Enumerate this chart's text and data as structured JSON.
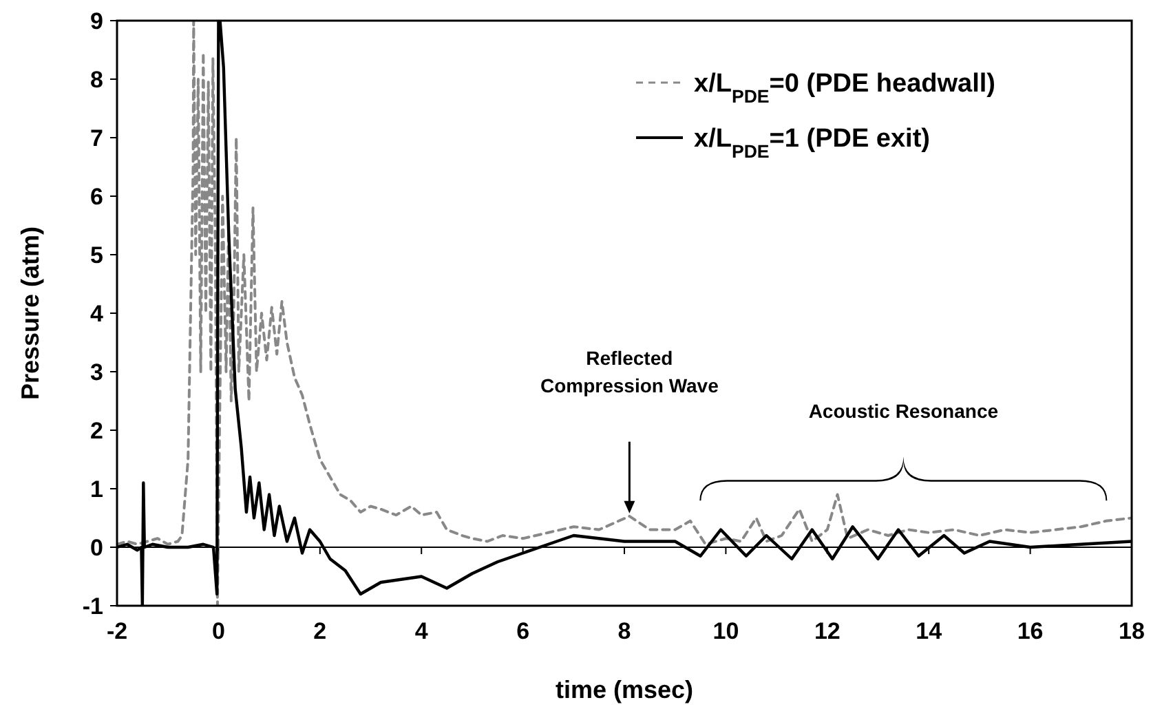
{
  "chart_data": {
    "type": "line",
    "xlabel": "time (msec)",
    "ylabel": "Pressure (atm)",
    "xlim": [
      -2,
      18
    ],
    "ylim": [
      -1,
      9
    ],
    "xticks": [
      -2,
      0,
      2,
      4,
      6,
      8,
      10,
      12,
      14,
      16,
      18
    ],
    "yticks": [
      -1,
      0,
      1,
      2,
      3,
      4,
      5,
      6,
      7,
      8,
      9
    ],
    "grid": false,
    "legend": "top right",
    "marker": "none",
    "ref_lines": [
      {
        "axis": "y",
        "value": 0,
        "color": "#000000"
      }
    ],
    "annotations": [
      "Reflected\nCompression Wave",
      "Acoustic Resonance"
    ],
    "series": [
      {
        "name": "x/L$_{PDE}$=0 (PDE headwall)",
        "color": "#888888",
        "line_style": "dashed",
        "x": [
          -2,
          -1.8,
          -1.6,
          -1.4,
          -1.2,
          -1,
          -0.8,
          -0.72,
          -0.6,
          -0.55,
          -0.5,
          -0.49,
          -0.45,
          -0.4,
          -0.35,
          -0.3,
          -0.25,
          -0.2,
          -0.15,
          -0.11,
          -0.06,
          -0.02,
          0.02,
          0.08,
          0.15,
          0.2,
          0.25,
          0.3,
          0.35,
          0.4,
          0.5,
          0.6,
          0.68,
          0.75,
          0.85,
          0.95,
          1.05,
          1.15,
          1.25,
          1.35,
          1.5,
          1.65,
          1.8,
          2,
          2.2,
          2.4,
          2.6,
          2.8,
          3,
          3.2,
          3.5,
          3.8,
          4,
          4.3,
          4.5,
          4.8,
          5,
          5.3,
          5.6,
          6,
          6.5,
          7,
          7.5,
          8.1,
          8.5,
          9,
          9.3,
          9.6,
          10,
          10.3,
          10.6,
          10.8,
          11.1,
          11.45,
          11.7,
          12,
          12.2,
          12.4,
          12.8,
          13.2,
          13.6,
          14,
          14.5,
          15,
          15.5,
          16,
          16.5,
          17,
          17.5,
          18
        ],
        "values": [
          0.05,
          0.1,
          0.05,
          0.1,
          0.15,
          0.05,
          0.1,
          0.2,
          1.5,
          4,
          6.5,
          9,
          5,
          8,
          3,
          8.45,
          4,
          7.95,
          3,
          8.35,
          5,
          -1,
          2,
          6,
          3,
          5.5,
          2.5,
          4,
          7,
          3,
          5,
          2.5,
          5.8,
          3,
          4,
          3.2,
          4.1,
          3.3,
          4.2,
          3.5,
          2.9,
          2.6,
          2.1,
          1.5,
          1.2,
          0.9,
          0.8,
          0.6,
          0.7,
          0.65,
          0.55,
          0.7,
          0.55,
          0.6,
          0.3,
          0.2,
          0.15,
          0.1,
          0.2,
          0.15,
          0.25,
          0.35,
          0.3,
          0.53,
          0.3,
          0.3,
          0.45,
          0.05,
          0.15,
          0.1,
          0.5,
          0.1,
          0.2,
          0.65,
          0.1,
          0.3,
          0.9,
          0.15,
          0.3,
          0.2,
          0.3,
          0.25,
          0.3,
          0.2,
          0.3,
          0.25,
          0.3,
          0.35,
          0.45,
          0.5
        ]
      },
      {
        "name": "x/L$_{PDE}$=1 (PDE exit)",
        "color": "#000000",
        "line_style": "solid",
        "x": [
          -2,
          -1.8,
          -1.6,
          -1.52,
          -1.5,
          -1.48,
          -1.46,
          -1.3,
          -1,
          -0.6,
          -0.3,
          -0.1,
          -0.03,
          0,
          0.03,
          0.1,
          0.2,
          0.33,
          0.45,
          0.55,
          0.62,
          0.7,
          0.8,
          0.9,
          1,
          1.1,
          1.2,
          1.35,
          1.5,
          1.65,
          1.8,
          2,
          2.2,
          2.5,
          2.8,
          3.2,
          3.6,
          4,
          4.5,
          5,
          5.5,
          6,
          6.5,
          7,
          7.5,
          8,
          8.5,
          9,
          9.5,
          9.9,
          10.4,
          10.8,
          11.3,
          11.7,
          12.1,
          12.5,
          13,
          13.4,
          13.8,
          14.3,
          14.7,
          15.2,
          16,
          17,
          18
        ],
        "values": [
          0,
          0.05,
          -0.05,
          0,
          -1,
          1.1,
          0,
          0.05,
          0,
          0,
          0.05,
          0,
          -0.8,
          9,
          9,
          8.2,
          5.4,
          2.7,
          1.7,
          0.6,
          1.2,
          0.5,
          1.1,
          0.3,
          0.9,
          0.2,
          0.7,
          0.1,
          0.5,
          -0.1,
          0.3,
          0.1,
          -0.2,
          -0.4,
          -0.8,
          -0.6,
          -0.55,
          -0.5,
          -0.7,
          -0.45,
          -0.25,
          -0.1,
          0.05,
          0.2,
          0.15,
          0.1,
          0.1,
          0.1,
          -0.15,
          0.3,
          -0.15,
          0.2,
          -0.2,
          0.3,
          -0.2,
          0.35,
          -0.2,
          0.3,
          -0.15,
          0.2,
          -0.1,
          0.1,
          0,
          0.05,
          0.1
        ]
      }
    ]
  }
}
